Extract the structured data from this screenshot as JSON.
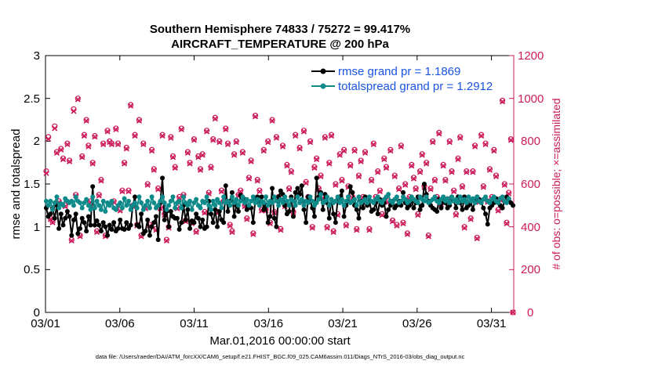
{
  "chart_data": {
    "type": "line",
    "title": "Southern Hemisphere 74833 / 75272 = 99.417%",
    "subtitle": "AIRCRAFT_TEMPERATURE @ 200 hPa",
    "xlabel": "Mar.01,2016 00:00:00 start",
    "ylabel_left": "rmse and totalspread",
    "ylabel_right": "# of obs: o=possible; ×=assimilated",
    "x_range": [
      0,
      31.5
    ],
    "ylim_left": [
      0,
      3
    ],
    "ylim_right": [
      0,
      1200
    ],
    "x_ticks": [
      {
        "x": 0,
        "label": "03/01"
      },
      {
        "x": 5,
        "label": "03/06"
      },
      {
        "x": 10,
        "label": "03/11"
      },
      {
        "x": 15,
        "label": "03/16"
      },
      {
        "x": 20,
        "label": "03/21"
      },
      {
        "x": 25,
        "label": "03/26"
      },
      {
        "x": 30,
        "label": "03/31"
      }
    ],
    "y_ticks_left": [
      "0",
      "0.5",
      "1",
      "1.5",
      "2",
      "2.5",
      "3"
    ],
    "y_ticks_right": [
      "0",
      "200",
      "400",
      "600",
      "800",
      "1000",
      "1200"
    ],
    "legend": [
      {
        "label": "rmse grand pr = 1.1869",
        "color": "#000000"
      },
      {
        "label": "totalspread grand pr = 1.2912",
        "color": "#0f8a8a"
      }
    ],
    "colors": {
      "rmse": "#000000",
      "spread": "#0f8a8a",
      "obs": "#cc1a5a"
    },
    "footnote": "data file: /Users/raeder/DAI/ATM_forcXX/CAM6_setup/f.e21.FHIST_BGC.f09_025.CAM6assim.011/Diags_NTrS_2016-03/obs_diag_output.nc",
    "series": [
      {
        "name": "rmse",
        "values": [
          1.22,
          1.12,
          1.15,
          1.22,
          1.1,
          1.25,
          0.98,
          1.15,
          1.02,
          1.1,
          1.18,
          1.12,
          0.9,
          1.08,
          1.15,
          0.92,
          0.98,
          1.1,
          1.05,
          0.95,
          1.12,
          1.02,
          1.47,
          1.02,
          1.07,
          1.02,
          0.95,
          1.05,
          1.0,
          0.9,
          1.02,
          0.97,
          1.05,
          0.95,
          0.98,
          1.08,
          0.98,
          0.97,
          1.05,
          0.98,
          1.02,
          1.25,
          1.35,
          1.02,
          1.0,
          1.15,
          0.92,
          0.95,
          1.08,
          0.9,
          1.0,
          1.05,
          1.12,
          0.85,
          1.28,
          1.57,
          1.08,
          1.18,
          1.0,
          1.18,
          1.12,
          1.1,
          1.1,
          0.97,
          1.05,
          1.25,
          1.08,
          1.2,
          0.98,
          1.07,
          1.05,
          1.15,
          1.1,
          1.0,
          1.08,
          0.98,
          1.0,
          1.3,
          1.15,
          1.05,
          1.2,
          1.0,
          1.18,
          1.08,
          1.05,
          1.48,
          1.18,
          1.3,
          1.4,
          1.12,
          1.25,
          1.18,
          1.37,
          1.33,
          1.32,
          1.2,
          1.25,
          1.22,
          1.05,
          1.32,
          1.35,
          1.28,
          1.35,
          1.2,
          1.25,
          1.05,
          1.12,
          1.45,
          1.1,
          1.0,
          1.35,
          1.42,
          1.38,
          1.25,
          1.15,
          1.18,
          1.35,
          1.12,
          1.4,
          1.45,
          1.38,
          1.48,
          1.2,
          1.05,
          1.35,
          1.3,
          1.22,
          1.12,
          1.57,
          1.35,
          1.4,
          1.2,
          1.38,
          1.28,
          1.1,
          1.32,
          1.15,
          1.05,
          1.32,
          1.35,
          1.42,
          1.12,
          1.25,
          1.3,
          1.47,
          1.4,
          1.25,
          1.2,
          1.1,
          1.3,
          1.22,
          1.35,
          1.25,
          1.3,
          1.18,
          1.2,
          1.28,
          1.15,
          1.32,
          1.25,
          1.28,
          1.12,
          1.2,
          1.25,
          1.3,
          1.22,
          1.25,
          1.3,
          1.25,
          1.4,
          1.28,
          1.22,
          1.25,
          1.3,
          1.22,
          1.28,
          1.35,
          1.2,
          1.25,
          1.5,
          1.38,
          1.3,
          1.25,
          1.22,
          1.2,
          1.18,
          1.32,
          1.22,
          1.3,
          1.28,
          1.22,
          1.25,
          1.35,
          1.3,
          1.22,
          1.35,
          1.28,
          1.2,
          1.35,
          1.22,
          1.25,
          1.3,
          1.2,
          1.3,
          1.35,
          1.32,
          1.28,
          1.22,
          1.15,
          1.03,
          1.22,
          1.25,
          1.28,
          1.33,
          1.28,
          1.25,
          1.22,
          1.3,
          1.35,
          1.32,
          1.28,
          1.25
        ]
      },
      {
        "name": "totalspread",
        "values": [
          1.3,
          1.25,
          1.3,
          1.2,
          1.28,
          1.35,
          1.22,
          1.27,
          1.25,
          1.33,
          1.3,
          1.28,
          1.3,
          1.25,
          1.35,
          1.3,
          1.28,
          1.22,
          1.28,
          1.32,
          1.25,
          1.2,
          1.35,
          1.22,
          1.3,
          1.25,
          1.2,
          1.3,
          1.18,
          1.28,
          1.25,
          1.3,
          1.22,
          1.2,
          1.25,
          1.28,
          1.22,
          1.33,
          1.25,
          1.3,
          1.2,
          1.25,
          1.28,
          1.22,
          1.35,
          1.28,
          1.2,
          1.25,
          1.3,
          1.22,
          1.35,
          1.28,
          1.22,
          1.25,
          1.3,
          1.35,
          1.28,
          1.2,
          1.25,
          1.3,
          1.35,
          1.22,
          1.28,
          1.3,
          1.22,
          1.35,
          1.28,
          1.25,
          1.3,
          1.2,
          1.28,
          1.32,
          1.25,
          1.22,
          1.3,
          1.28,
          1.35,
          1.25,
          1.2,
          1.3,
          1.25,
          1.32,
          1.28,
          1.22,
          1.35,
          1.28,
          1.3,
          1.25,
          1.35,
          1.28,
          1.32,
          1.25,
          1.3,
          1.35,
          1.28,
          1.32,
          1.25,
          1.3,
          1.35,
          1.28,
          1.32,
          1.25,
          1.3,
          1.28,
          1.35,
          1.25,
          1.3,
          1.28,
          1.35,
          1.3,
          1.25,
          1.32,
          1.28,
          1.35,
          1.3,
          1.25,
          1.32,
          1.3,
          1.25,
          1.35,
          1.28,
          1.32,
          1.25,
          1.3,
          1.28,
          1.35,
          1.3,
          1.25,
          1.28,
          1.32,
          1.38,
          1.28,
          1.3,
          1.35,
          1.25,
          1.32,
          1.28,
          1.3,
          1.35,
          1.28,
          1.32,
          1.25,
          1.3,
          1.35,
          1.28,
          1.3,
          1.32,
          1.25,
          1.35,
          1.28,
          1.3,
          1.32,
          1.28,
          1.35,
          1.3,
          1.28,
          1.32,
          1.35,
          1.3,
          1.28,
          1.32,
          1.35,
          1.38,
          1.3,
          1.28,
          1.32,
          1.35,
          1.28,
          1.3,
          1.35,
          1.32,
          1.28,
          1.3,
          1.35,
          1.32,
          1.3,
          1.28,
          1.35,
          1.32,
          1.3,
          1.35,
          1.28,
          1.3,
          1.32,
          1.35,
          1.3,
          1.28,
          1.32,
          1.35,
          1.3,
          1.33,
          1.28,
          1.35,
          1.3,
          1.32,
          1.28,
          1.35,
          1.3,
          1.32,
          1.28,
          1.35,
          1.3,
          1.33,
          1.28,
          1.35,
          1.3,
          1.28,
          1.32,
          1.35,
          1.3,
          1.28,
          1.32,
          1.35,
          1.3,
          1.28,
          1.33,
          1.35,
          1.3,
          1.28,
          1.33
        ]
      },
      {
        "name": "obs_possible",
        "values": [
          660,
          820,
          440,
          425,
          870,
          750,
          520,
          765,
          720,
          500,
          790,
          710,
          340,
          950,
          550,
          1000,
          360,
          730,
          830,
          900,
          780,
          520,
          700,
          825,
          380,
          550,
          620,
          790,
          360,
          850,
          800,
          790,
          520,
          860,
          790,
          480,
          570,
          700,
          770,
          570,
          970,
          500,
          830,
          410,
          900,
          360,
          790,
          490,
          600,
          410,
          760,
          670,
          390,
          580,
          490,
          830,
          460,
          340,
          400,
          820,
          730,
          680,
          490,
          540,
          860,
          550,
          430,
          750,
          700,
          420,
          810,
          380,
          730,
          670,
          740,
          470,
          850,
          560,
          680,
          810,
          910,
          470,
          800,
          570,
          520,
          860,
          790,
          410,
          380,
          740,
          800,
          550,
          570,
          750,
          500,
          440,
          630,
          710,
          370,
          920,
          620,
          570,
          480,
          760,
          480,
          800,
          420,
          900,
          470,
          820,
          540,
          390,
          780,
          500,
          690,
          580,
          660,
          470,
          830,
          560,
          770,
          520,
          850,
          610,
          540,
          800,
          400,
          680,
          720,
          580,
          640,
          540,
          820,
          400,
          700,
          830,
          380,
          600,
          460,
          740,
          620,
          760,
          410,
          590,
          690,
          540,
          760,
          390,
          640,
          710,
          540,
          750,
          520,
          390,
          620,
          790,
          540,
          660,
          570,
          460,
          720,
          680,
          520,
          760,
          430,
          640,
          410,
          580,
          780,
          420,
          600,
          370,
          540,
          690,
          630,
          580,
          460,
          660,
          740,
          590,
          700,
          360,
          580,
          800,
          620,
          540,
          840,
          510,
          690,
          620,
          530,
          800,
          660,
          570,
          460,
          720,
          820,
          590,
          400,
          660,
          520,
          440,
          660,
          780,
          350,
          520,
          830,
          590,
          790,
          520,
          670,
          540,
          760,
          640,
          480,
          530,
          990,
          600,
          420,
          560,
          810,
          0
        ]
      },
      {
        "name": "obs_assimilated",
        "values": [
          650,
          810,
          435,
          420,
          860,
          745,
          515,
          760,
          715,
          495,
          785,
          705,
          335,
          940,
          545,
          995,
          355,
          725,
          825,
          895,
          775,
          515,
          695,
          820,
          375,
          545,
          615,
          785,
          355,
          845,
          795,
          785,
          515,
          855,
          785,
          475,
          565,
          695,
          765,
          565,
          965,
          495,
          825,
          405,
          895,
          355,
          785,
          485,
          595,
          405,
          755,
          665,
          385,
          575,
          485,
          825,
          455,
          335,
          395,
          815,
          725,
          675,
          485,
          535,
          855,
          545,
          425,
          745,
          695,
          415,
          805,
          375,
          725,
          665,
          735,
          465,
          845,
          555,
          675,
          805,
          905,
          465,
          795,
          565,
          515,
          855,
          785,
          405,
          375,
          735,
          795,
          545,
          565,
          745,
          495,
          435,
          625,
          705,
          365,
          915,
          615,
          565,
          475,
          755,
          475,
          795,
          415,
          895,
          465,
          815,
          535,
          385,
          775,
          495,
          685,
          575,
          655,
          465,
          825,
          555,
          765,
          515,
          845,
          605,
          535,
          795,
          395,
          675,
          715,
          575,
          635,
          535,
          815,
          395,
          695,
          825,
          375,
          595,
          455,
          735,
          615,
          755,
          405,
          585,
          685,
          535,
          755,
          385,
          635,
          705,
          535,
          745,
          515,
          385,
          615,
          785,
          535,
          655,
          565,
          455,
          715,
          675,
          515,
          755,
          425,
          635,
          405,
          575,
          775,
          415,
          595,
          365,
          535,
          685,
          625,
          575,
          455,
          655,
          735,
          585,
          695,
          355,
          575,
          795,
          615,
          535,
          835,
          505,
          685,
          615,
          525,
          795,
          655,
          565,
          455,
          715,
          815,
          585,
          395,
          655,
          515,
          435,
          655,
          775,
          345,
          515,
          825,
          585,
          785,
          515,
          665,
          535,
          755,
          635,
          475,
          525,
          985,
          595,
          415,
          555,
          805,
          0
        ]
      }
    ]
  }
}
